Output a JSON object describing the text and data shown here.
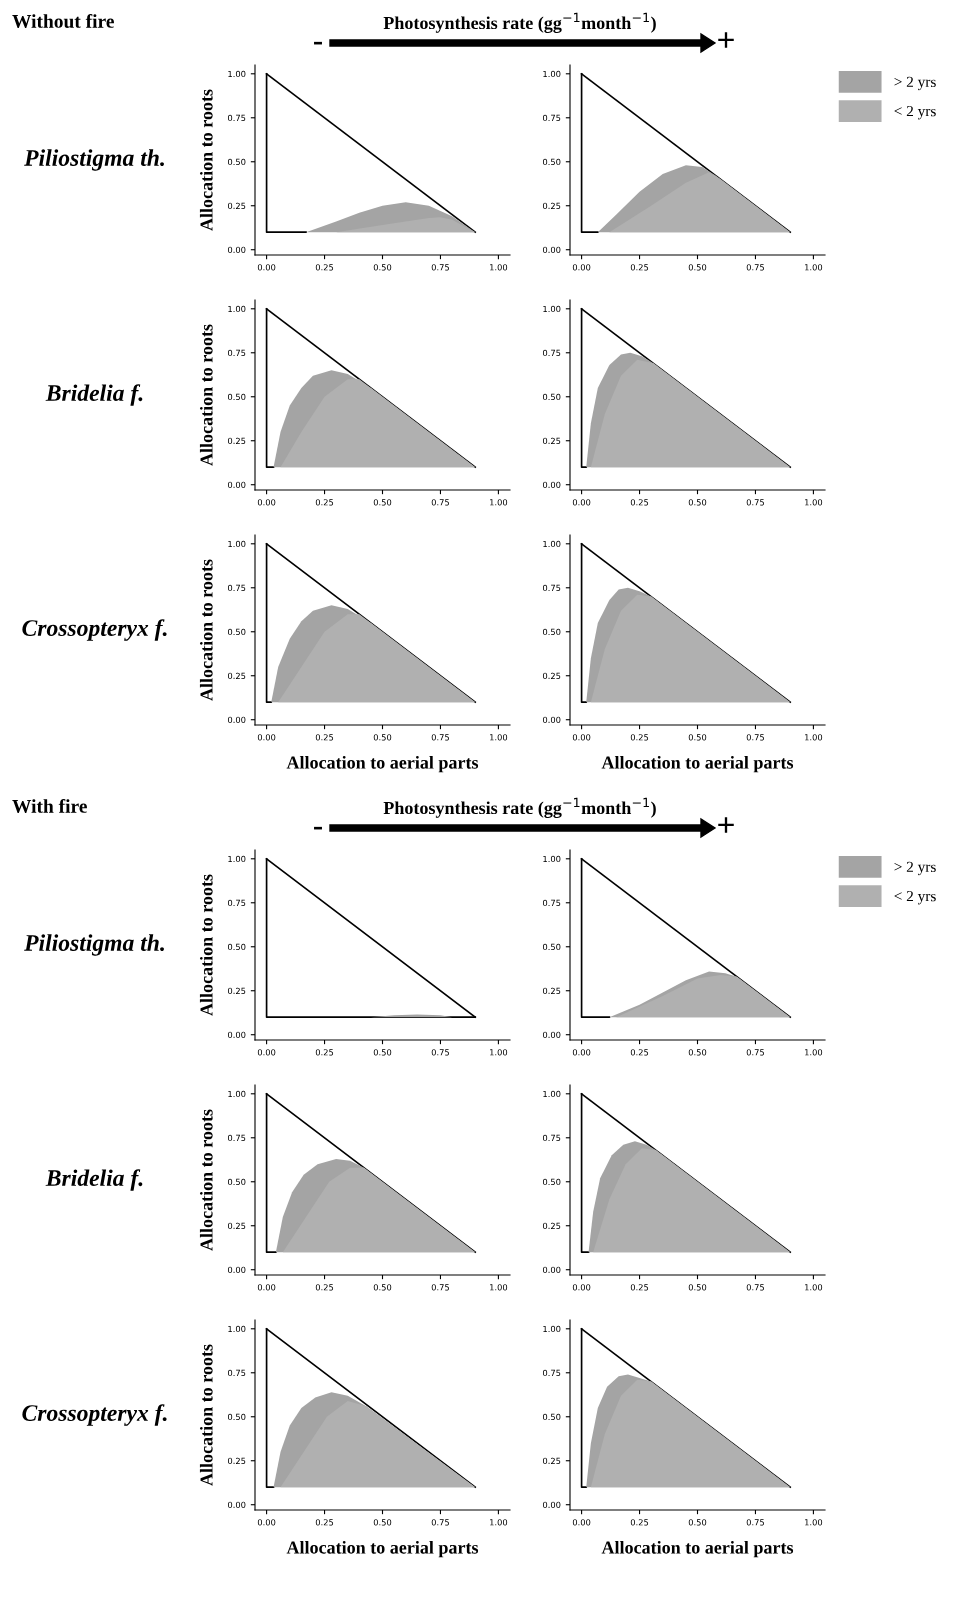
{
  "chart_data": [
    {
      "type": "area",
      "ylabel": "Allocation to roots",
      "annotations": [
        "Piliostigma th.",
        "Without fire",
        "-",
        "Photosynthesis rate (gg$^{−1}$month$^{−1}$)",
        "+"
      ],
      "xlim": [
        -0.05,
        1.05
      ],
      "ylim": [
        -0.03,
        1.05
      ],
      "xticks": [
        {
          "value": 0,
          "label": "0.00"
        },
        {
          "value": 0.25,
          "label": "0.25"
        },
        {
          "value": 0.5,
          "label": "0.50"
        },
        {
          "value": 0.75,
          "label": "0.75"
        },
        {
          "value": 1,
          "label": "1.00"
        }
      ],
      "yticks": [
        {
          "value": 0,
          "label": "0.00"
        },
        {
          "value": 0.25,
          "label": "0.25"
        },
        {
          "value": 0.5,
          "label": "0.50"
        },
        {
          "value": 0.75,
          "label": "0.75"
        },
        {
          "value": 1,
          "label": "1.00"
        }
      ],
      "grid": false,
      "series": [
        {
          "type": "area",
          "color": "#a4a4a4",
          "x": [
            0.17,
            0.3,
            0.4,
            0.5,
            0.6,
            0.7,
            0.8,
            0.9
          ],
          "values": [
            0.1,
            0.16,
            0.21,
            0.25,
            0.27,
            0.25,
            0.19,
            0.1
          ]
        },
        {
          "type": "area",
          "color": "#b0b0b0",
          "x": [
            0.3,
            0.5,
            0.7,
            0.75,
            0.8,
            0.9
          ],
          "values": [
            0.1,
            0.14,
            0.18,
            0.185,
            0.17,
            0.1
          ]
        },
        {
          "type": "line",
          "color": "#000000",
          "x": [
            0,
            0,
            0.17
          ],
          "values": [
            1,
            0.1,
            0.1
          ]
        },
        {
          "type": "line",
          "color": "#000000",
          "x": [
            0,
            0.9
          ],
          "values": [
            1,
            0.1
          ]
        }
      ]
    },
    {
      "type": "area",
      "legend": "right",
      "xlim": [
        -0.05,
        1.05
      ],
      "ylim": [
        -0.03,
        1.05
      ],
      "xticks": [
        {
          "value": 0,
          "label": "0.00"
        },
        {
          "value": 0.25,
          "label": "0.25"
        },
        {
          "value": 0.5,
          "label": "0.50"
        },
        {
          "value": 0.75,
          "label": "0.75"
        },
        {
          "value": 1,
          "label": "1.00"
        }
      ],
      "yticks": [
        {
          "value": 0,
          "label": "0.00"
        },
        {
          "value": 0.25,
          "label": "0.25"
        },
        {
          "value": 0.5,
          "label": "0.50"
        },
        {
          "value": 0.75,
          "label": "0.75"
        },
        {
          "value": 1,
          "label": "1.00"
        }
      ],
      "grid": false,
      "series": [
        {
          "type": "area",
          "name": "> 2 yrs",
          "color": "#a4a4a4",
          "x": [
            0.07,
            0.15,
            0.25,
            0.35,
            0.45,
            0.52,
            0.58,
            0.9
          ],
          "values": [
            0.1,
            0.2,
            0.33,
            0.43,
            0.48,
            0.47,
            0.42,
            0.1
          ]
        },
        {
          "type": "area",
          "name": "< 2 yrs",
          "color": "#b0b0b0",
          "x": [
            0.12,
            0.3,
            0.45,
            0.55,
            0.6,
            0.9
          ],
          "values": [
            0.1,
            0.25,
            0.38,
            0.44,
            0.4,
            0.1
          ]
        },
        {
          "type": "line",
          "color": "#000000",
          "x": [
            0,
            0,
            0.07
          ],
          "values": [
            1,
            0.1,
            0.1
          ]
        },
        {
          "type": "line",
          "color": "#000000",
          "x": [
            0,
            0.9
          ],
          "values": [
            1,
            0.1
          ]
        }
      ]
    },
    {
      "type": "area",
      "ylabel": "Allocation to roots",
      "annotations": [
        "Bridelia f."
      ],
      "xlim": [
        -0.05,
        1.05
      ],
      "ylim": [
        -0.03,
        1.05
      ],
      "xticks": [
        {
          "value": 0,
          "label": "0.00"
        },
        {
          "value": 0.25,
          "label": "0.25"
        },
        {
          "value": 0.5,
          "label": "0.50"
        },
        {
          "value": 0.75,
          "label": "0.75"
        },
        {
          "value": 1,
          "label": "1.00"
        }
      ],
      "yticks": [
        {
          "value": 0,
          "label": "0.00"
        },
        {
          "value": 0.25,
          "label": "0.25"
        },
        {
          "value": 0.5,
          "label": "0.50"
        },
        {
          "value": 0.75,
          "label": "0.75"
        },
        {
          "value": 1,
          "label": "1.00"
        }
      ],
      "grid": false,
      "series": [
        {
          "type": "area",
          "color": "#a4a4a4",
          "x": [
            0.03,
            0.06,
            0.1,
            0.15,
            0.2,
            0.28,
            0.35,
            0.45,
            0.9
          ],
          "values": [
            0.1,
            0.3,
            0.45,
            0.55,
            0.62,
            0.65,
            0.63,
            0.55,
            0.1
          ]
        },
        {
          "type": "area",
          "color": "#b0b0b0",
          "x": [
            0.06,
            0.15,
            0.25,
            0.35,
            0.4,
            0.45,
            0.9
          ],
          "values": [
            0.1,
            0.3,
            0.5,
            0.6,
            0.6,
            0.55,
            0.1
          ]
        },
        {
          "type": "line",
          "color": "#000000",
          "x": [
            0,
            0,
            0.03
          ],
          "values": [
            1,
            0.1,
            0.1
          ]
        },
        {
          "type": "line",
          "color": "#000000",
          "x": [
            0,
            0.9
          ],
          "values": [
            1,
            0.1
          ]
        }
      ]
    },
    {
      "type": "area",
      "xlim": [
        -0.05,
        1.05
      ],
      "ylim": [
        -0.03,
        1.05
      ],
      "xticks": [
        {
          "value": 0,
          "label": "0.00"
        },
        {
          "value": 0.25,
          "label": "0.25"
        },
        {
          "value": 0.5,
          "label": "0.50"
        },
        {
          "value": 0.75,
          "label": "0.75"
        },
        {
          "value": 1,
          "label": "1.00"
        }
      ],
      "yticks": [
        {
          "value": 0,
          "label": "0.00"
        },
        {
          "value": 0.25,
          "label": "0.25"
        },
        {
          "value": 0.5,
          "label": "0.50"
        },
        {
          "value": 0.75,
          "label": "0.75"
        },
        {
          "value": 1,
          "label": "1.00"
        }
      ],
      "grid": false,
      "series": [
        {
          "type": "area",
          "color": "#a4a4a4",
          "x": [
            0.02,
            0.04,
            0.07,
            0.12,
            0.17,
            0.21,
            0.26,
            0.31,
            0.9
          ],
          "values": [
            0.1,
            0.35,
            0.55,
            0.68,
            0.74,
            0.75,
            0.73,
            0.69,
            0.1
          ]
        },
        {
          "type": "area",
          "color": "#b0b0b0",
          "x": [
            0.04,
            0.1,
            0.17,
            0.24,
            0.31,
            0.9
          ],
          "values": [
            0.1,
            0.4,
            0.62,
            0.71,
            0.69,
            0.1
          ]
        },
        {
          "type": "line",
          "color": "#000000",
          "x": [
            0,
            0,
            0.02
          ],
          "values": [
            1,
            0.1,
            0.1
          ]
        },
        {
          "type": "line",
          "color": "#000000",
          "x": [
            0,
            0.9
          ],
          "values": [
            1,
            0.1
          ]
        }
      ]
    },
    {
      "type": "area",
      "ylabel": "Allocation to roots",
      "xlabel": "Allocation to aerial parts",
      "annotations": [
        "Crossopteryx f."
      ],
      "xlim": [
        -0.05,
        1.05
      ],
      "ylim": [
        -0.03,
        1.05
      ],
      "xticks": [
        {
          "value": 0,
          "label": "0.00"
        },
        {
          "value": 0.25,
          "label": "0.25"
        },
        {
          "value": 0.5,
          "label": "0.50"
        },
        {
          "value": 0.75,
          "label": "0.75"
        },
        {
          "value": 1,
          "label": "1.00"
        }
      ],
      "yticks": [
        {
          "value": 0,
          "label": "0.00"
        },
        {
          "value": 0.25,
          "label": "0.25"
        },
        {
          "value": 0.5,
          "label": "0.50"
        },
        {
          "value": 0.75,
          "label": "0.75"
        },
        {
          "value": 1,
          "label": "1.00"
        }
      ],
      "grid": false,
      "series": [
        {
          "type": "area",
          "color": "#a4a4a4",
          "x": [
            0.02,
            0.05,
            0.1,
            0.15,
            0.2,
            0.28,
            0.35,
            0.45,
            0.9
          ],
          "values": [
            0.1,
            0.3,
            0.46,
            0.56,
            0.62,
            0.65,
            0.63,
            0.55,
            0.1
          ]
        },
        {
          "type": "area",
          "color": "#b0b0b0",
          "x": [
            0.05,
            0.15,
            0.25,
            0.35,
            0.4,
            0.45,
            0.9
          ],
          "values": [
            0.1,
            0.3,
            0.5,
            0.6,
            0.6,
            0.55,
            0.1
          ]
        },
        {
          "type": "line",
          "color": "#000000",
          "x": [
            0,
            0,
            0.02
          ],
          "values": [
            1,
            0.1,
            0.1
          ]
        },
        {
          "type": "line",
          "color": "#000000",
          "x": [
            0,
            0.9
          ],
          "values": [
            1,
            0.1
          ]
        }
      ]
    },
    {
      "type": "area",
      "xlabel": "Allocation to aerial parts",
      "xlim": [
        -0.05,
        1.05
      ],
      "ylim": [
        -0.03,
        1.05
      ],
      "xticks": [
        {
          "value": 0,
          "label": "0.00"
        },
        {
          "value": 0.25,
          "label": "0.25"
        },
        {
          "value": 0.5,
          "label": "0.50"
        },
        {
          "value": 0.75,
          "label": "0.75"
        },
        {
          "value": 1,
          "label": "1.00"
        }
      ],
      "yticks": [
        {
          "value": 0,
          "label": "0.00"
        },
        {
          "value": 0.25,
          "label": "0.25"
        },
        {
          "value": 0.5,
          "label": "0.50"
        },
        {
          "value": 0.75,
          "label": "0.75"
        },
        {
          "value": 1,
          "label": "1.00"
        }
      ],
      "grid": false,
      "series": [
        {
          "type": "area",
          "color": "#a4a4a4",
          "x": [
            0.02,
            0.04,
            0.07,
            0.12,
            0.16,
            0.2,
            0.25,
            0.3,
            0.9
          ],
          "values": [
            0.1,
            0.35,
            0.55,
            0.68,
            0.74,
            0.75,
            0.73,
            0.7,
            0.1
          ]
        },
        {
          "type": "area",
          "color": "#b0b0b0",
          "x": [
            0.04,
            0.1,
            0.17,
            0.24,
            0.3,
            0.9
          ],
          "values": [
            0.1,
            0.4,
            0.62,
            0.71,
            0.7,
            0.1
          ]
        },
        {
          "type": "line",
          "color": "#000000",
          "x": [
            0,
            0,
            0.02
          ],
          "values": [
            1,
            0.1,
            0.1
          ]
        },
        {
          "type": "line",
          "color": "#000000",
          "x": [
            0,
            0.9
          ],
          "values": [
            1,
            0.1
          ]
        }
      ]
    },
    {
      "type": "area",
      "ylabel": "Allocation to roots",
      "annotations": [
        "Piliostigma th.",
        "With fire",
        "-",
        "Photosynthesis rate (gg$^{−1}$month$^{−1}$)",
        "+"
      ],
      "xlim": [
        -0.05,
        1.05
      ],
      "ylim": [
        -0.03,
        1.05
      ],
      "xticks": [
        {
          "value": 0,
          "label": "0.00"
        },
        {
          "value": 0.25,
          "label": "0.25"
        },
        {
          "value": 0.5,
          "label": "0.50"
        },
        {
          "value": 0.75,
          "label": "0.75"
        },
        {
          "value": 1,
          "label": "1.00"
        }
      ],
      "yticks": [
        {
          "value": 0,
          "label": "0.00"
        },
        {
          "value": 0.25,
          "label": "0.25"
        },
        {
          "value": 0.5,
          "label": "0.50"
        },
        {
          "value": 0.75,
          "label": "0.75"
        },
        {
          "value": 1,
          "label": "1.00"
        }
      ],
      "grid": false,
      "series": [
        {
          "type": "area",
          "color": "#a4a4a4",
          "x": [
            0.45,
            0.55,
            0.65,
            0.75,
            0.8
          ],
          "values": [
            0.1,
            0.11,
            0.115,
            0.11,
            0.1
          ]
        },
        {
          "type": "line",
          "color": "#000000",
          "x": [
            0,
            0,
            0.9
          ],
          "values": [
            1,
            0.1,
            0.1
          ]
        },
        {
          "type": "line",
          "color": "#000000",
          "x": [
            0,
            0.9
          ],
          "values": [
            1,
            0.1
          ]
        }
      ]
    },
    {
      "type": "area",
      "legend": "right",
      "xlim": [
        -0.05,
        1.05
      ],
      "ylim": [
        -0.03,
        1.05
      ],
      "xticks": [
        {
          "value": 0,
          "label": "0.00"
        },
        {
          "value": 0.25,
          "label": "0.25"
        },
        {
          "value": 0.5,
          "label": "0.50"
        },
        {
          "value": 0.75,
          "label": "0.75"
        },
        {
          "value": 1,
          "label": "1.00"
        }
      ],
      "yticks": [
        {
          "value": 0,
          "label": "0.00"
        },
        {
          "value": 0.25,
          "label": "0.25"
        },
        {
          "value": 0.5,
          "label": "0.50"
        },
        {
          "value": 0.75,
          "label": "0.75"
        },
        {
          "value": 1,
          "label": "1.00"
        }
      ],
      "grid": false,
      "series": [
        {
          "type": "area",
          "name": "> 2 yrs",
          "color": "#a4a4a4",
          "x": [
            0.12,
            0.25,
            0.35,
            0.45,
            0.55,
            0.62,
            0.67,
            0.9
          ],
          "values": [
            0.1,
            0.17,
            0.24,
            0.31,
            0.36,
            0.35,
            0.33,
            0.1
          ]
        },
        {
          "type": "area",
          "name": "< 2 yrs",
          "color": "#b0b0b0",
          "x": [
            0.15,
            0.35,
            0.5,
            0.6,
            0.67,
            0.9
          ],
          "values": [
            0.1,
            0.22,
            0.32,
            0.34,
            0.33,
            0.1
          ]
        },
        {
          "type": "line",
          "color": "#000000",
          "x": [
            0,
            0,
            0.12
          ],
          "values": [
            1,
            0.1,
            0.1
          ]
        },
        {
          "type": "line",
          "color": "#000000",
          "x": [
            0,
            0.9
          ],
          "values": [
            1,
            0.1
          ]
        }
      ]
    },
    {
      "type": "area",
      "ylabel": "Allocation to roots",
      "annotations": [
        "Bridelia f."
      ],
      "xlim": [
        -0.05,
        1.05
      ],
      "ylim": [
        -0.03,
        1.05
      ],
      "xticks": [
        {
          "value": 0,
          "label": "0.00"
        },
        {
          "value": 0.25,
          "label": "0.25"
        },
        {
          "value": 0.5,
          "label": "0.50"
        },
        {
          "value": 0.75,
          "label": "0.75"
        },
        {
          "value": 1,
          "label": "1.00"
        }
      ],
      "yticks": [
        {
          "value": 0,
          "label": "0.00"
        },
        {
          "value": 0.25,
          "label": "0.25"
        },
        {
          "value": 0.5,
          "label": "0.50"
        },
        {
          "value": 0.75,
          "label": "0.75"
        },
        {
          "value": 1,
          "label": "1.00"
        }
      ],
      "grid": false,
      "series": [
        {
          "type": "area",
          "color": "#a4a4a4",
          "x": [
            0.04,
            0.07,
            0.11,
            0.16,
            0.22,
            0.3,
            0.36,
            0.42,
            0.9
          ],
          "values": [
            0.1,
            0.3,
            0.44,
            0.54,
            0.6,
            0.63,
            0.62,
            0.58,
            0.1
          ]
        },
        {
          "type": "area",
          "color": "#b0b0b0",
          "x": [
            0.07,
            0.17,
            0.27,
            0.36,
            0.42,
            0.9
          ],
          "values": [
            0.1,
            0.3,
            0.5,
            0.58,
            0.58,
            0.1
          ]
        },
        {
          "type": "line",
          "color": "#000000",
          "x": [
            0,
            0,
            0.04
          ],
          "values": [
            1,
            0.1,
            0.1
          ]
        },
        {
          "type": "line",
          "color": "#000000",
          "x": [
            0,
            0.9
          ],
          "values": [
            1,
            0.1
          ]
        }
      ]
    },
    {
      "type": "area",
      "xlim": [
        -0.05,
        1.05
      ],
      "ylim": [
        -0.03,
        1.05
      ],
      "xticks": [
        {
          "value": 0,
          "label": "0.00"
        },
        {
          "value": 0.25,
          "label": "0.25"
        },
        {
          "value": 0.5,
          "label": "0.50"
        },
        {
          "value": 0.75,
          "label": "0.75"
        },
        {
          "value": 1,
          "label": "1.00"
        }
      ],
      "yticks": [
        {
          "value": 0,
          "label": "0.00"
        },
        {
          "value": 0.25,
          "label": "0.25"
        },
        {
          "value": 0.5,
          "label": "0.50"
        },
        {
          "value": 0.75,
          "label": "0.75"
        },
        {
          "value": 1,
          "label": "1.00"
        }
      ],
      "grid": false,
      "series": [
        {
          "type": "area",
          "color": "#a4a4a4",
          "x": [
            0.03,
            0.05,
            0.08,
            0.13,
            0.18,
            0.23,
            0.28,
            0.32,
            0.9
          ],
          "values": [
            0.1,
            0.33,
            0.52,
            0.65,
            0.71,
            0.73,
            0.71,
            0.68,
            0.1
          ]
        },
        {
          "type": "area",
          "color": "#b0b0b0",
          "x": [
            0.05,
            0.12,
            0.19,
            0.26,
            0.32,
            0.9
          ],
          "values": [
            0.1,
            0.4,
            0.6,
            0.69,
            0.68,
            0.1
          ]
        },
        {
          "type": "line",
          "color": "#000000",
          "x": [
            0,
            0,
            0.03
          ],
          "values": [
            1,
            0.1,
            0.1
          ]
        },
        {
          "type": "line",
          "color": "#000000",
          "x": [
            0,
            0.9
          ],
          "values": [
            1,
            0.1
          ]
        }
      ]
    },
    {
      "type": "area",
      "ylabel": "Allocation to roots",
      "xlabel": "Allocation to aerial parts",
      "annotations": [
        "Crossopteryx f."
      ],
      "xlim": [
        -0.05,
        1.05
      ],
      "ylim": [
        -0.03,
        1.05
      ],
      "xticks": [
        {
          "value": 0,
          "label": "0.00"
        },
        {
          "value": 0.25,
          "label": "0.25"
        },
        {
          "value": 0.5,
          "label": "0.50"
        },
        {
          "value": 0.75,
          "label": "0.75"
        },
        {
          "value": 1,
          "label": "1.00"
        }
      ],
      "yticks": [
        {
          "value": 0,
          "label": "0.00"
        },
        {
          "value": 0.25,
          "label": "0.25"
        },
        {
          "value": 0.5,
          "label": "0.50"
        },
        {
          "value": 0.75,
          "label": "0.75"
        },
        {
          "value": 1,
          "label": "1.00"
        }
      ],
      "grid": false,
      "series": [
        {
          "type": "area",
          "color": "#a4a4a4",
          "x": [
            0.03,
            0.06,
            0.1,
            0.15,
            0.21,
            0.28,
            0.35,
            0.43,
            0.9
          ],
          "values": [
            0.1,
            0.3,
            0.45,
            0.55,
            0.61,
            0.64,
            0.62,
            0.56,
            0.1
          ]
        },
        {
          "type": "area",
          "color": "#b0b0b0",
          "x": [
            0.06,
            0.16,
            0.26,
            0.35,
            0.43,
            0.9
          ],
          "values": [
            0.1,
            0.3,
            0.5,
            0.59,
            0.56,
            0.1
          ]
        },
        {
          "type": "line",
          "color": "#000000",
          "x": [
            0,
            0,
            0.03
          ],
          "values": [
            1,
            0.1,
            0.1
          ]
        },
        {
          "type": "line",
          "color": "#000000",
          "x": [
            0,
            0.9
          ],
          "values": [
            1,
            0.1
          ]
        }
      ]
    },
    {
      "type": "area",
      "xlabel": "Allocation to aerial parts",
      "xlim": [
        -0.05,
        1.05
      ],
      "ylim": [
        -0.03,
        1.05
      ],
      "xticks": [
        {
          "value": 0,
          "label": "0.00"
        },
        {
          "value": 0.25,
          "label": "0.25"
        },
        {
          "value": 0.5,
          "label": "0.50"
        },
        {
          "value": 0.75,
          "label": "0.75"
        },
        {
          "value": 1,
          "label": "1.00"
        }
      ],
      "yticks": [
        {
          "value": 0,
          "label": "0.00"
        },
        {
          "value": 0.25,
          "label": "0.25"
        },
        {
          "value": 0.5,
          "label": "0.50"
        },
        {
          "value": 0.75,
          "label": "0.75"
        },
        {
          "value": 1,
          "label": "1.00"
        }
      ],
      "grid": false,
      "series": [
        {
          "type": "area",
          "color": "#a4a4a4",
          "x": [
            0.02,
            0.04,
            0.07,
            0.11,
            0.16,
            0.2,
            0.25,
            0.3,
            0.9
          ],
          "values": [
            0.1,
            0.35,
            0.55,
            0.67,
            0.73,
            0.74,
            0.72,
            0.7,
            0.1
          ]
        },
        {
          "type": "area",
          "color": "#b0b0b0",
          "x": [
            0.04,
            0.1,
            0.17,
            0.24,
            0.3,
            0.9
          ],
          "values": [
            0.1,
            0.4,
            0.62,
            0.71,
            0.7,
            0.1
          ]
        },
        {
          "type": "line",
          "color": "#000000",
          "x": [
            0,
            0,
            0.02
          ],
          "values": [
            1,
            0.1,
            0.1
          ]
        },
        {
          "type": "line",
          "color": "#000000",
          "x": [
            0,
            0.9
          ],
          "values": [
            1,
            0.1
          ]
        }
      ]
    }
  ]
}
